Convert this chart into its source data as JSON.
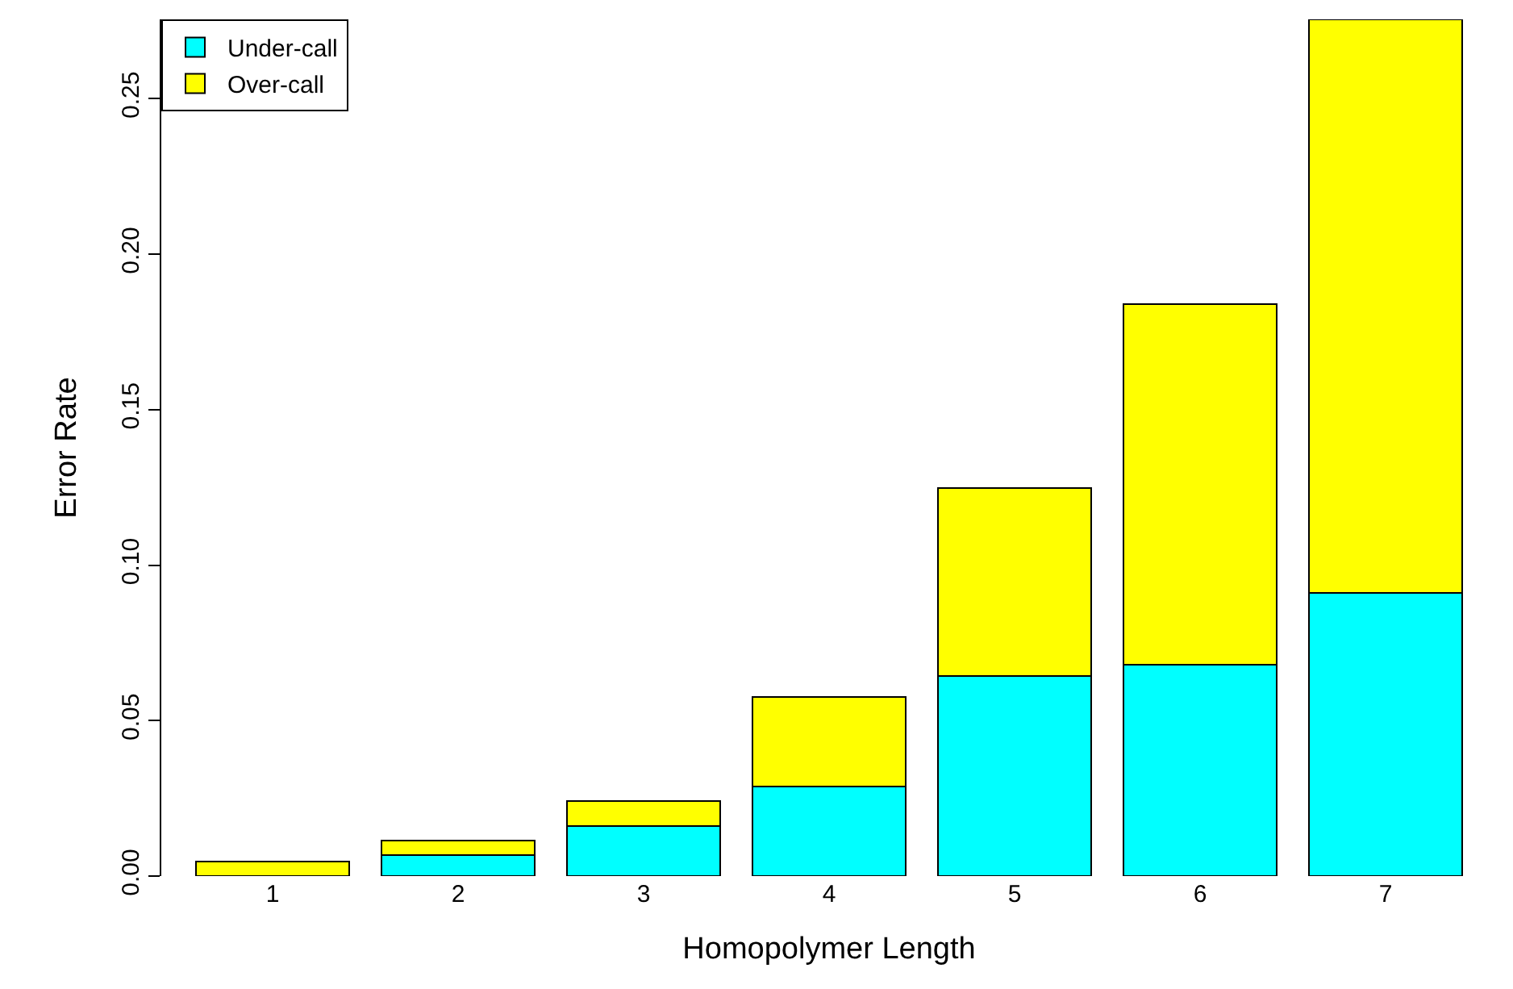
{
  "chart_data": {
    "type": "bar",
    "stacked": true,
    "xlabel": "Homopolymer Length",
    "ylabel": "Error Rate",
    "categories": [
      "1",
      "2",
      "3",
      "4",
      "5",
      "6",
      "7"
    ],
    "series": [
      {
        "name": "Under-call",
        "color": "#00ffff",
        "values": [
          0.0,
          0.0068,
          0.0162,
          0.0288,
          0.0644,
          0.068,
          0.0911
        ]
      },
      {
        "name": "Over-call",
        "color": "#ffff00",
        "values": [
          0.0047,
          0.0047,
          0.0078,
          0.0288,
          0.0603,
          0.1159,
          0.1844
        ]
      }
    ],
    "ylim": [
      0,
      0.2755
    ],
    "yticks": [
      {
        "value": 0,
        "label": "0.00"
      },
      {
        "value": 0.05,
        "label": "0.05"
      },
      {
        "value": 0.1,
        "label": "0.10"
      },
      {
        "value": 0.15,
        "label": "0.15"
      },
      {
        "value": 0.2,
        "label": "0.20"
      },
      {
        "value": 0.25,
        "label": "0.25"
      }
    ],
    "legend": "top left"
  }
}
